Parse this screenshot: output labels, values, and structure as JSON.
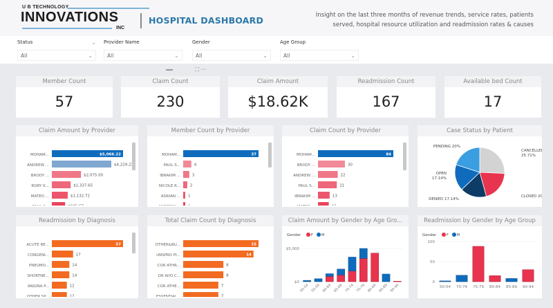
{
  "header": {
    "logo_line1": "U B TECHNOLOGY",
    "logo_line2": "INNOVATIONS",
    "logo_line3": "INC",
    "title": "HOSPITAL DASHBOARD",
    "insight": "Insight on the last three months of revenue trends, service rates, patients served, hospital resource utilization and readmission rates & causes"
  },
  "filters": [
    {
      "label": "Status",
      "value": "All"
    },
    {
      "label": "Provider Name",
      "value": "All"
    },
    {
      "label": "Gender",
      "value": "All"
    },
    {
      "label": "Age Group",
      "value": "All"
    }
  ],
  "visual_toolbar": {
    "focus_icon": "⛶",
    "more": "···"
  },
  "kpis": [
    {
      "label": "Member Count",
      "value": "57"
    },
    {
      "label": "Claim Count",
      "value": "230"
    },
    {
      "label": "Claim Amount",
      "value": "$18.62K"
    },
    {
      "label": "Readmission Count",
      "value": "167"
    },
    {
      "label": "Available bed Count",
      "value": "17"
    }
  ],
  "colors": {
    "primary_blue": "#0f6cbd",
    "light_blue": "#7fa7cf",
    "red": "#e8344e",
    "orange": "#f26b21",
    "navy": "#0d3c66",
    "grey": "#d3d3d3",
    "sky": "#3a9ee0"
  },
  "chart_data": [
    {
      "type": "bar",
      "orientation": "horizontal",
      "title": "Claim Amount by Provider",
      "categories": [
        "MOHAM...",
        "ANDREW ...",
        "BRODY ...",
        "RORY K...",
        "MATEO ...",
        "PAUL S..."
      ],
      "values": [
        5066.22,
        4229.23,
        2075.0,
        1337.65,
        1132.72,
        945.67
      ],
      "labels": [
        "$5,066.22",
        "$4,229.23",
        "$2,075.00",
        "$1,337.65",
        "$1,132.72",
        "$945.67"
      ]
    },
    {
      "type": "bar",
      "orientation": "horizontal",
      "title": "Member Count by Provider",
      "categories": [
        "MOHAM...",
        "PAUL S...",
        "IBRAKIM ...",
        "NICOLE R...",
        "ADRIAN ...",
        "ANDREW ..."
      ],
      "values": [
        37,
        4,
        3,
        2,
        1,
        1
      ],
      "labels": [
        "37",
        "4",
        "3",
        "2",
        "1",
        "1"
      ]
    },
    {
      "type": "bar",
      "orientation": "horizontal",
      "title": "Claim Count by Provider",
      "categories": [
        "MOHAM...",
        "BRODY ...",
        "ANDREW ...",
        "PAUL S...",
        "IBRAKIM ...",
        "MATEO ..."
      ],
      "values": [
        84,
        30,
        22,
        21,
        13,
        12
      ],
      "labels": [
        "84",
        "30",
        "22",
        "21",
        "13",
        "12"
      ]
    },
    {
      "type": "pie",
      "title": "Case Status by Patient",
      "slices": [
        {
          "label": "CANCELLED",
          "value": 25.71,
          "text": "CANCELLED 25.71%"
        },
        {
          "label": "CLOSED",
          "value": 20,
          "text": "CLOSED 20%"
        },
        {
          "label": "DENIED",
          "value": 17.14,
          "text": "DENIED 17.14%"
        },
        {
          "label": "OPEN",
          "value": 17.14,
          "text": "OPEN 17.14%"
        },
        {
          "label": "PENDING",
          "value": 20,
          "text": "PENDING 20%"
        }
      ]
    },
    {
      "type": "bar",
      "orientation": "horizontal",
      "title": "Readmission by Diagnosis",
      "categories": [
        "ACUTE RE...",
        "CONGENI...",
        "PNEUMO...",
        "SHORTNE...",
        "ANGINA P...",
        "OTHER SP..."
      ],
      "values": [
        57,
        17,
        14,
        14,
        12,
        12
      ],
      "labels": [
        "57",
        "17",
        "14",
        "14",
        "12",
        "12"
      ]
    },
    {
      "type": "bar",
      "orientation": "horizontal",
      "title": "Total Claim Count by Diagnosis",
      "categories": [
        "OTHER&BU...",
        "UNSPRD PI...",
        "COR ATHR...",
        "DR W/O C...",
        "COR ATHE...",
        "ESSENTIAL..."
      ],
      "values": [
        15,
        14,
        8,
        8,
        7,
        7
      ],
      "labels": [
        "15",
        "14",
        "8",
        "8",
        "7",
        "7"
      ]
    },
    {
      "type": "bar",
      "stacked": true,
      "title": "Claim Amount by Gender by Age Gro...",
      "legend_title": "Gender",
      "categories": [
        "50-54",
        "55-59",
        "60-64",
        "65-69",
        "70-74",
        "75-79",
        "80-84",
        "85-89",
        "90-94"
      ],
      "series": [
        {
          "name": "F",
          "values": [
            0,
            0,
            800,
            1000,
            1600,
            3500,
            4300,
            0,
            80
          ]
        },
        {
          "name": "M",
          "values": [
            200,
            450,
            400,
            900,
            2100,
            1500,
            0,
            1150,
            0
          ]
        }
      ],
      "yticks": [
        "$0",
        "$5,000"
      ],
      "ylim": [
        0,
        5000
      ]
    },
    {
      "type": "bar",
      "title": "Readmission by Gender by Age Group",
      "legend_title": "Gender",
      "categories": [
        "50-54",
        "70-74",
        "75-79",
        "80-84",
        "85-89",
        "90-94"
      ],
      "series": [
        {
          "name": "F",
          "values": [
            0,
            0,
            88,
            15,
            0,
            30
          ]
        },
        {
          "name": "M",
          "values": [
            2,
            16,
            0,
            0,
            8,
            0
          ]
        }
      ],
      "yticks": [
        "0",
        "50",
        "100"
      ],
      "ylim": [
        0,
        100
      ]
    }
  ]
}
